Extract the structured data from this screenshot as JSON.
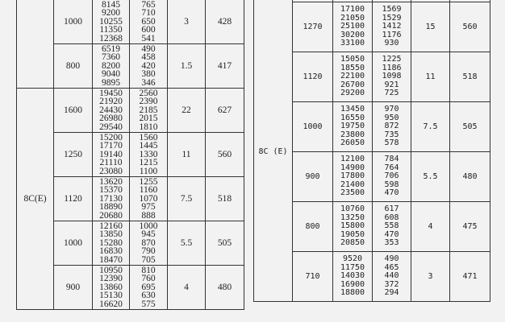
{
  "left_table": {
    "groups": [
      {
        "model": "",
        "rows": [
          {
            "speed": "1000",
            "flow": [
              "8145",
              "9200",
              "10255",
              "11350",
              "12368"
            ],
            "pressure": [
              "765",
              "710",
              "650",
              "600",
              "541"
            ],
            "power": "3",
            "weight": "428"
          },
          {
            "speed": "800",
            "flow": [
              "6519",
              "7360",
              "8200",
              "9040",
              "9895"
            ],
            "pressure": [
              "490",
              "458",
              "420",
              "380",
              "346"
            ],
            "power": "1.5",
            "weight": "417"
          }
        ]
      },
      {
        "model": "8C(E)",
        "rows": [
          {
            "speed": "1600",
            "flow": [
              "19450",
              "21920",
              "24430",
              "26980",
              "29540"
            ],
            "pressure": [
              "2560",
              "2390",
              "2185",
              "2015",
              "1810"
            ],
            "power": "22",
            "weight": "627"
          },
          {
            "speed": "1250",
            "flow": [
              "15200",
              "17170",
              "19140",
              "21110",
              "23080"
            ],
            "pressure": [
              "1560",
              "1445",
              "1330",
              "1215",
              "1100"
            ],
            "power": "11",
            "weight": "560"
          },
          {
            "speed": "1120",
            "flow": [
              "13620",
              "15370",
              "17130",
              "18890",
              "20680"
            ],
            "pressure": [
              "1255",
              "1160",
              "1070",
              "975",
              "888"
            ],
            "power": "7.5",
            "weight": "518"
          },
          {
            "speed": "1000",
            "flow": [
              "12160",
              "13850",
              "15280",
              "16830",
              "18470"
            ],
            "pressure": [
              "1000",
              "945",
              "870",
              "790",
              "705"
            ],
            "power": "5.5",
            "weight": "505"
          },
          {
            "speed": "900",
            "flow": [
              "10950",
              "12390",
              "13860",
              "15130",
              "16620"
            ],
            "pressure": [
              "810",
              "760",
              "695",
              "630",
              "575"
            ],
            "power": "4",
            "weight": "480"
          }
        ]
      }
    ]
  },
  "right_table": {
    "groups": [
      {
        "model": "8C (E)",
        "rows": [
          {
            "speed": "1270",
            "flow": [
              "17100",
              "21050",
              "25100",
              "30200",
              "33100"
            ],
            "pressure": [
              "1569",
              "1529",
              "1412",
              "1176",
              "930"
            ],
            "power": "15",
            "weight": "560"
          },
          {
            "speed": "1120",
            "flow": [
              "15050",
              "18550",
              "22100",
              "26700",
              "29200"
            ],
            "pressure": [
              "1225",
              "1186",
              "1098",
              "921",
              "725"
            ],
            "power": "11",
            "weight": "518"
          },
          {
            "speed": "1000",
            "flow": [
              "13450",
              "16550",
              "19750",
              "23800",
              "26050"
            ],
            "pressure": [
              "970",
              "950",
              "872",
              "735",
              "578"
            ],
            "power": "7.5",
            "weight": "505"
          },
          {
            "speed": "900",
            "flow": [
              "12100",
              "14900",
              "17800",
              "21400",
              "23500"
            ],
            "pressure": [
              "784",
              "764",
              "706",
              "598",
              "470"
            ],
            "power": "5.5",
            "weight": "480"
          },
          {
            "speed": "800",
            "flow": [
              "10760",
              "13250",
              "15800",
              "19050",
              "20850"
            ],
            "pressure": [
              "617",
              "608",
              "558",
              "470",
              "353"
            ],
            "power": "4",
            "weight": "475"
          },
          {
            "speed": "710",
            "flow": [
              "9520",
              "11750",
              "14030",
              "16900",
              "18800"
            ],
            "pressure": [
              "490",
              "465",
              "440",
              "372",
              "294"
            ],
            "power": "3",
            "weight": "471"
          }
        ]
      }
    ]
  }
}
